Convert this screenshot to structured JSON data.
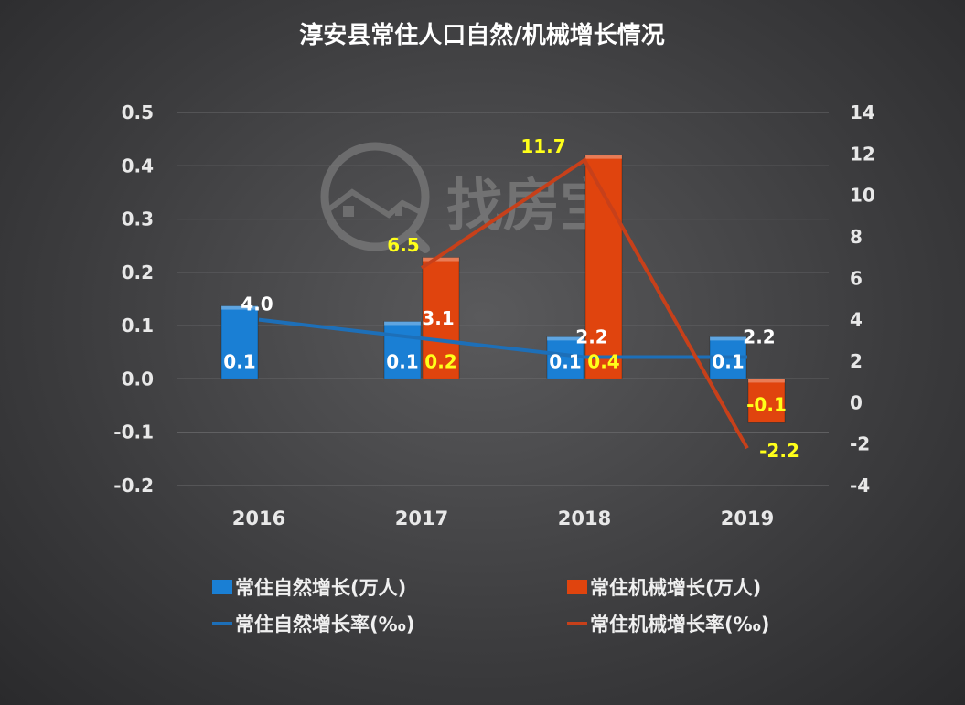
{
  "chart_data": {
    "type": "bar",
    "title": "淳安县常住人口自然/机械增长情况",
    "categories": [
      "2016",
      "2017",
      "2018",
      "2019"
    ],
    "ylim_left": [
      -0.2,
      0.5
    ],
    "yticks_left": [
      "0.5",
      "0.4",
      "0.3",
      "0.2",
      "0.1",
      "0.0",
      "-0.1",
      "-0.2"
    ],
    "ylim_right": [
      -4,
      14
    ],
    "yticks_right": [
      "14",
      "12",
      "10",
      "8",
      "6",
      "4",
      "2",
      "0",
      "-2",
      "-4"
    ],
    "grid": true,
    "legend_position": "bottom",
    "series": [
      {
        "name": "常住自然增长(万人)",
        "kind": "bar",
        "axis": "left",
        "color": "#1a7fd4",
        "values": [
          0.137,
          0.108,
          0.079,
          0.079
        ],
        "labels": [
          "0.1",
          "0.1",
          "0.1",
          "0.1"
        ]
      },
      {
        "name": "常住机械增长(万人)",
        "kind": "bar",
        "axis": "left",
        "color": "#e0440e",
        "values": [
          null,
          0.228,
          0.42,
          -0.082
        ],
        "labels": [
          null,
          "0.2",
          "0.4",
          "-0.1"
        ]
      },
      {
        "name": "常住自然增长率(‰)",
        "kind": "line",
        "axis": "right",
        "color": "#1d6fb8",
        "values": [
          4.0,
          3.1,
          2.2,
          2.2
        ],
        "labels": [
          "4.0",
          "3.1",
          "2.2",
          "2.2"
        ]
      },
      {
        "name": "常住机械增长率(‰)",
        "kind": "line",
        "axis": "right",
        "color": "#c7401a",
        "values": [
          null,
          6.5,
          11.7,
          -2.2
        ],
        "labels": [
          null,
          "6.5",
          "11.7",
          "-2.2"
        ]
      }
    ]
  },
  "watermark": "找房宝"
}
